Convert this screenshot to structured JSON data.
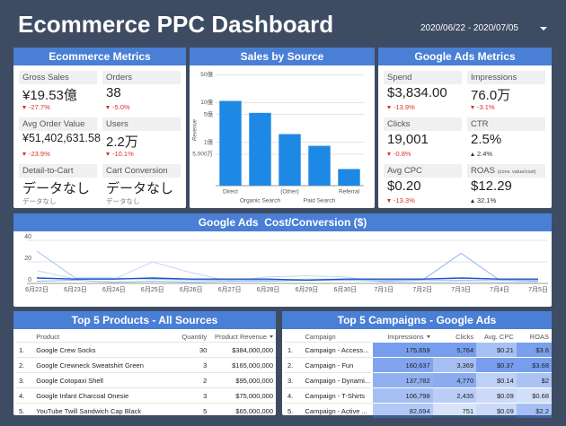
{
  "header": {
    "title": "Ecommerce PPC Dashboard",
    "date_range": "2020/06/22 - 2020/07/05"
  },
  "ecommerce_metrics": {
    "title": "Ecommerce Metrics",
    "cards": [
      {
        "label": "Gross Sales",
        "value": "¥19.53億",
        "delta": "-27.7%"
      },
      {
        "label": "Orders",
        "value": "38",
        "delta": "-5.0%"
      },
      {
        "label": "Avg Order Value",
        "value": "¥51,402,631.58",
        "delta": "-23.9%"
      },
      {
        "label": "Users",
        "value": "2.2万",
        "delta": "-10.1%"
      },
      {
        "label": "Detail-to-Cart",
        "value": "データなし",
        "delta": "データなし"
      },
      {
        "label": "Cart Conversion",
        "value": "データなし",
        "delta": "データなし"
      }
    ]
  },
  "google_ads_metrics": {
    "title": "Google Ads Metrics",
    "cards": [
      {
        "label": "Spend",
        "value": "$3,834.00",
        "delta": "-13.9%"
      },
      {
        "label": "Impressions",
        "value": "76.0万",
        "delta": "-3.1%"
      },
      {
        "label": "Clicks",
        "value": "19,001",
        "delta": "-0.8%"
      },
      {
        "label": "CTR",
        "value": "2.5%",
        "delta": "2.4%"
      },
      {
        "label": "Avg CPC",
        "value": "$0.20",
        "delta": "-13.3%"
      },
      {
        "label": "ROAS",
        "note": "(conv. value/cost)",
        "value": "$12.29",
        "delta": "32.1%"
      }
    ]
  },
  "chart_data": [
    {
      "type": "bar",
      "title": "Sales by Source",
      "y_label": "Revenue",
      "categories": [
        "Direct",
        "Organic Search",
        "(Other)",
        "Paid Search",
        "Referral"
      ],
      "values": [
        1100000000,
        550000000,
        160000000,
        81000000,
        21000000
      ],
      "color": "#1e88e5",
      "log_scale": true,
      "grid": true,
      "ylim": [
        8000000,
        6000000000
      ],
      "yticks": [
        {
          "value": 50000000,
          "label": "5,000万"
        },
        {
          "value": 100000000,
          "label": "1億"
        },
        {
          "value": 500000000,
          "label": "5億"
        },
        {
          "value": 1000000000,
          "label": "10億"
        },
        {
          "value": 5000000000,
          "label": "50億"
        }
      ]
    },
    {
      "type": "line",
      "title": "Google Ads  Cost/Conversion ($)",
      "categories": [
        "6月22日",
        "6月23日",
        "6月24日",
        "6月25日",
        "6月26日",
        "6月27日",
        "6月28日",
        "6月29日",
        "6月30日",
        "7月1日",
        "7月2日",
        "7月3日",
        "7月4日",
        "7月5日"
      ],
      "series": [
        {
          "color": "#9fc0f0",
          "values": [
            30,
            5,
            5,
            4,
            3,
            3,
            3,
            4,
            4,
            3,
            3,
            3,
            3,
            3
          ]
        },
        {
          "color": "#c3d7f5",
          "values": [
            12,
            4,
            4,
            20,
            10,
            2,
            6,
            7,
            6,
            1,
            1,
            2,
            1,
            1
          ]
        },
        {
          "color": "#8fb4ec",
          "values": [
            2,
            3,
            1,
            2,
            1,
            2,
            2,
            3,
            3,
            2,
            3,
            28,
            3,
            2
          ]
        },
        {
          "color": "#1a56c4",
          "values": [
            5,
            4,
            4,
            5,
            4,
            4,
            4,
            3,
            4,
            4,
            4,
            5,
            4,
            4
          ]
        }
      ],
      "ylim": [
        0,
        45
      ],
      "yticks": [
        0,
        20,
        40
      ],
      "grid": true
    }
  ],
  "top_products": {
    "title": "Top 5 Products - All Sources",
    "columns": [
      "Product",
      "Quantity",
      "Product Revenue"
    ],
    "rows": [
      [
        "1.",
        "Google Crew Socks",
        "30",
        "$384,000,000"
      ],
      [
        "2.",
        "Google Crewneck Sweatshirt Green",
        "3",
        "$165,000,000"
      ],
      [
        "3.",
        "Google Cotopaxi Shell",
        "2",
        "$95,000,000"
      ],
      [
        "4.",
        "Google Infant Charcoal Onesie",
        "3",
        "$75,000,000"
      ],
      [
        "5.",
        "YouTube Twill Sandwich Cap Black",
        "5",
        "$65,000,000"
      ]
    ]
  },
  "top_campaigns": {
    "title": "Top 5 Campaigns - Google Ads",
    "columns": [
      "Campaign",
      "Impressions",
      "Clicks",
      "Avg. CPC",
      "ROAS"
    ],
    "rows": [
      [
        "1.",
        "Campaign - Access...",
        "175,659",
        "5,764",
        "$0.21",
        "$3.6"
      ],
      [
        "2.",
        "Campaign - Fun",
        "160,637",
        "3,369",
        "$0.37",
        "$3.68"
      ],
      [
        "3.",
        "Campaign - Dynami...",
        "137,782",
        "4,770",
        "$0.14",
        "$2"
      ],
      [
        "4.",
        "Campaign - T-Shirts",
        "106,798",
        "2,435",
        "$0.09",
        "$0.68"
      ],
      [
        "5.",
        "Campaign - Active ...",
        "82,694",
        "751",
        "$0.09",
        "$2.2"
      ]
    ]
  }
}
